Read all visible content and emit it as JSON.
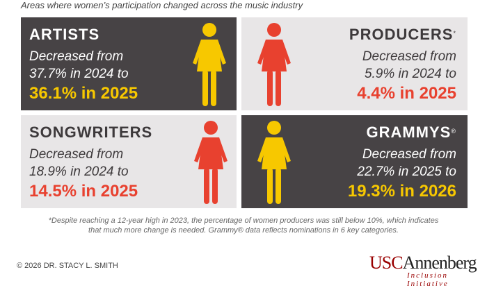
{
  "subtitle": "Areas where women’s participation changed across the music industry",
  "colors": {
    "dark_panel": "#474345",
    "light_panel": "#e8e6e7",
    "yellow": "#f7c800",
    "red": "#e8412f",
    "usc_cardinal": "#990000"
  },
  "panels": [
    {
      "title": "ARTISTS",
      "mark": "",
      "line1": "Decreased from",
      "line2": "37.7% in 2024 to",
      "highlight": "36.1% in 2025",
      "icon": "woman-icon"
    },
    {
      "title": "PRODUCERS",
      "mark": "*",
      "line1": "Decreased from",
      "line2": "5.9% in 2024 to",
      "highlight": "4.4% in 2025",
      "icon": "woman-icon"
    },
    {
      "title": "SONGWRITERS",
      "mark": "",
      "line1": "Decreased from",
      "line2": "18.9% in 2024 to",
      "highlight": "14.5% in 2025",
      "icon": "woman-icon"
    },
    {
      "title": "GRAMMYS",
      "mark": "®",
      "line1": "Decreased from",
      "line2": "22.7% in 2025 to",
      "highlight": "19.3% in 2026",
      "icon": "woman-icon"
    }
  ],
  "footnote": {
    "line1": "*Despite reaching a 12-year high in 2023, the percentage of women producers was still below 10%, which indicates",
    "line2": "that much more change is needed. Grammy® data reflects nominations in 6 key categories."
  },
  "copyright": "© 2026 DR. STACY L. SMITH",
  "logo": {
    "usc": "USC",
    "name": "Annenberg",
    "initiative": "Inclusion Initiative"
  }
}
